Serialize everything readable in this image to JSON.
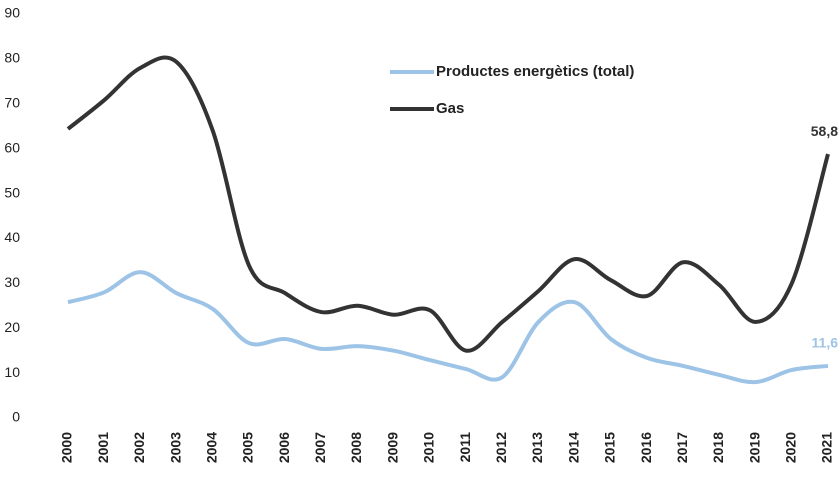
{
  "chart_data": {
    "type": "line",
    "categories": [
      "2000",
      "2001",
      "2002",
      "2003",
      "2004",
      "2005",
      "2006",
      "2007",
      "2008",
      "2009",
      "2010",
      "2011",
      "2012",
      "2013",
      "2014",
      "2015",
      "2016",
      "2017",
      "2018",
      "2019",
      "2020",
      "2021"
    ],
    "series": [
      {
        "name": "Productes energètics (total)",
        "color": "#9dc3e6",
        "values": [
          25.8,
          28,
          32.5,
          27.8,
          24.3,
          16.7,
          17.6,
          15.4,
          16,
          15,
          12.9,
          10.9,
          9.1,
          21.4,
          25.8,
          17.6,
          13.4,
          11.6,
          9.6,
          8,
          10.7,
          11.6
        ],
        "value_labels": [
          null,
          null,
          null,
          null,
          null,
          null,
          null,
          null,
          null,
          null,
          null,
          null,
          null,
          null,
          null,
          null,
          null,
          null,
          null,
          null,
          null,
          "11,6"
        ]
      },
      {
        "name": "Gas",
        "color": "#333333",
        "values": [
          64.4,
          70.8,
          78,
          79.3,
          64,
          34,
          27.8,
          23.6,
          25,
          23,
          24,
          15,
          21.4,
          28.3,
          35.4,
          30.7,
          27.2,
          34.7,
          29.6,
          21.4,
          30,
          58.8
        ],
        "value_labels": [
          null,
          null,
          null,
          null,
          null,
          null,
          null,
          null,
          null,
          null,
          null,
          null,
          null,
          null,
          null,
          null,
          null,
          null,
          null,
          null,
          null,
          "58,8"
        ]
      }
    ],
    "ylim": [
      0,
      90
    ],
    "yticks": [
      0,
      10,
      20,
      30,
      40,
      50,
      60,
      70,
      80,
      90
    ],
    "grid": false
  }
}
